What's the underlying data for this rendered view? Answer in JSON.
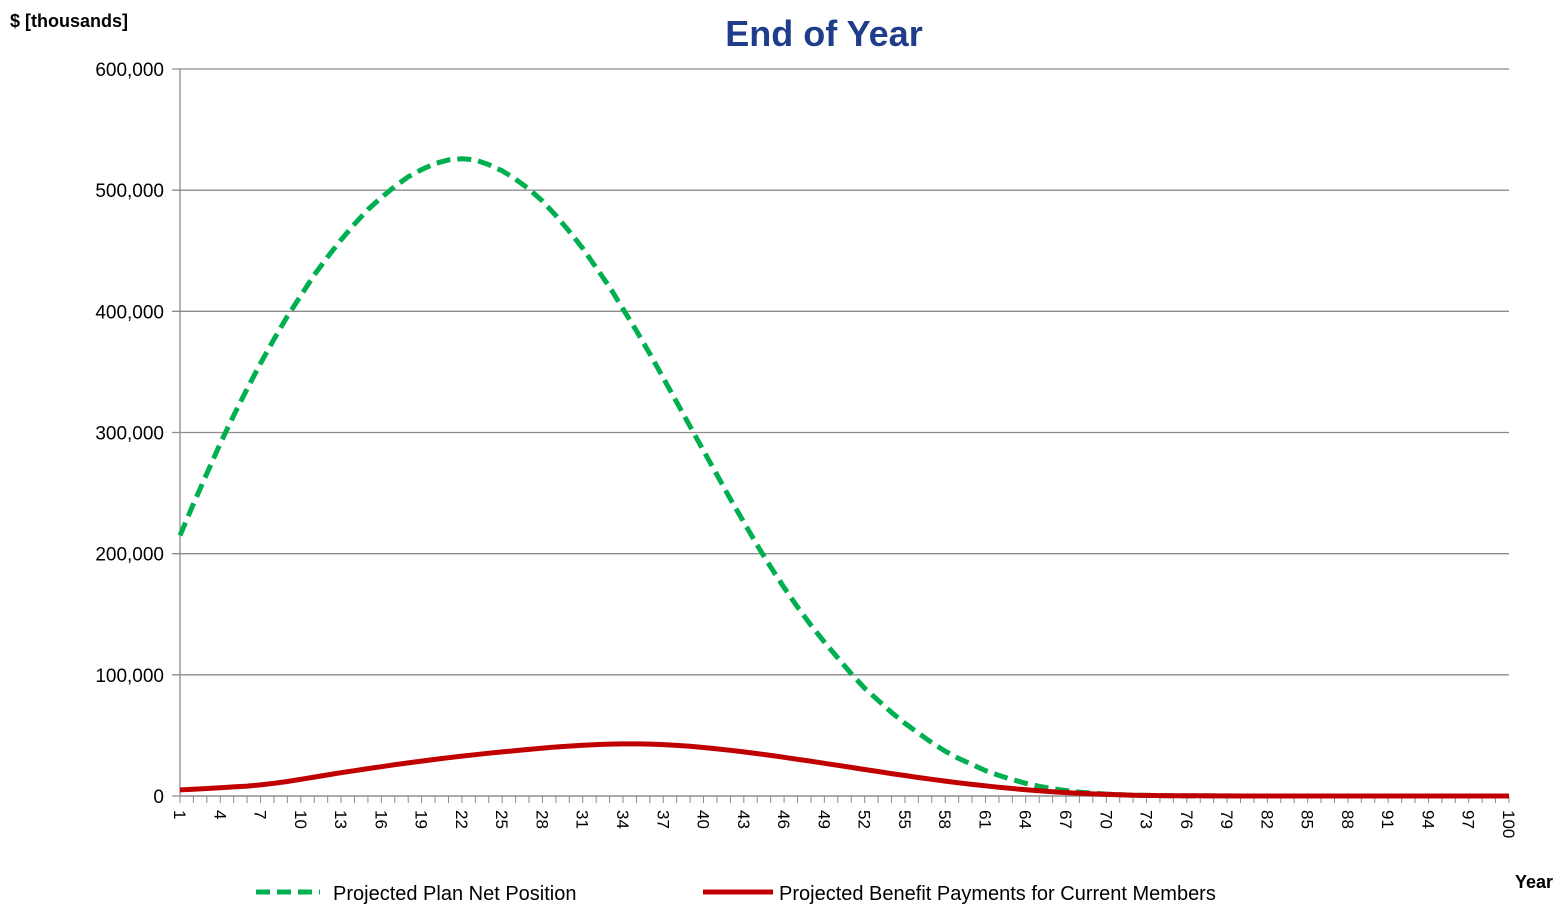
{
  "chart_data": {
    "type": "line",
    "title": "End of Year",
    "ylabel": "$ [thousands]",
    "xlabel": "Year",
    "x": [
      1,
      2,
      3,
      4,
      5,
      6,
      7,
      8,
      9,
      10,
      11,
      12,
      13,
      14,
      15,
      16,
      17,
      18,
      19,
      20,
      21,
      22,
      23,
      24,
      25,
      26,
      27,
      28,
      29,
      30,
      31,
      32,
      33,
      34,
      35,
      36,
      37,
      38,
      39,
      40,
      41,
      42,
      43,
      44,
      45,
      46,
      47,
      48,
      49,
      50,
      51,
      52,
      53,
      54,
      55,
      56,
      57,
      58,
      59,
      60,
      61,
      62,
      63,
      64,
      65,
      66,
      67,
      68,
      69,
      70,
      71,
      72,
      73,
      74,
      75,
      76,
      77,
      78,
      79,
      80,
      81,
      82,
      83,
      84,
      85,
      86,
      87,
      88,
      89,
      90,
      91,
      92,
      93,
      94,
      95,
      96,
      97,
      98,
      99,
      100
    ],
    "x_tick_labels": [
      "1",
      "4",
      "7",
      "10",
      "13",
      "16",
      "19",
      "22",
      "25",
      "28",
      "31",
      "34",
      "37",
      "40",
      "43",
      "46",
      "49",
      "52",
      "55",
      "58",
      "61",
      "64",
      "67",
      "70",
      "73",
      "76",
      "79",
      "82",
      "85",
      "88",
      "91",
      "94",
      "97",
      "100"
    ],
    "ylim": [
      0,
      600000
    ],
    "y_ticks": [
      0,
      100000,
      200000,
      300000,
      400000,
      500000,
      600000
    ],
    "y_tick_labels": [
      "0",
      "100,000",
      "200,000",
      "300,000",
      "400,000",
      "500,000",
      "600,000"
    ],
    "grid": true,
    "legend_position": "bottom",
    "series": [
      {
        "name": "Projected Plan Net Position",
        "color": "#00b050",
        "dash": "dashed",
        "values": [
          215000,
          241000,
          266000,
          291000,
          314000,
          336000,
          357000,
          377000,
          396000,
          413000,
          430000,
          445000,
          459000,
          472000,
          484000,
          494000,
          503000,
          511000,
          517000,
          522000,
          525000,
          526000,
          525000,
          521000,
          516000,
          509000,
          501000,
          491000,
          479000,
          466000,
          452000,
          436000,
          420000,
          402000,
          384000,
          365000,
          345000,
          325000,
          305000,
          285000,
          265000,
          245000,
          226000,
          207000,
          189000,
          172000,
          156000,
          141000,
          127000,
          114000,
          101000,
          89000,
          79000,
          69000,
          60000,
          52000,
          44000,
          37000,
          31000,
          26000,
          21000,
          17000,
          13500,
          10500,
          8000,
          6000,
          4500,
          3200,
          2300,
          1600,
          1100,
          750,
          500,
          300,
          200,
          120,
          80,
          50,
          30,
          20,
          10,
          5,
          0,
          0,
          0,
          0,
          0,
          0,
          0,
          0,
          0,
          0,
          0,
          0,
          0,
          0,
          0,
          0,
          0,
          0
        ]
      },
      {
        "name": "Projected Benefit Payments for Current Members",
        "color": "#c00000",
        "dash": "solid",
        "values": [
          5000,
          5500,
          6200,
          6800,
          7500,
          8200,
          9200,
          10500,
          12000,
          13800,
          15600,
          17400,
          19200,
          20900,
          22600,
          24200,
          25800,
          27300,
          28800,
          30200,
          31600,
          32900,
          34100,
          35300,
          36400,
          37500,
          38500,
          39500,
          40400,
          41200,
          41900,
          42400,
          42800,
          43000,
          43000,
          42800,
          42400,
          41800,
          41000,
          40000,
          38900,
          37700,
          36400,
          35000,
          33500,
          31900,
          30300,
          28700,
          27000,
          25300,
          23600,
          21900,
          20200,
          18500,
          16900,
          15300,
          13800,
          12300,
          10900,
          9600,
          8400,
          7200,
          6200,
          5200,
          4300,
          3500,
          2800,
          2200,
          1700,
          1300,
          950,
          700,
          500,
          350,
          250,
          180,
          130,
          90,
          60,
          40,
          30,
          20,
          15,
          10,
          5,
          0,
          0,
          0,
          0,
          0,
          0,
          0,
          0,
          0,
          0,
          0,
          0,
          0,
          0,
          0
        ]
      }
    ]
  }
}
